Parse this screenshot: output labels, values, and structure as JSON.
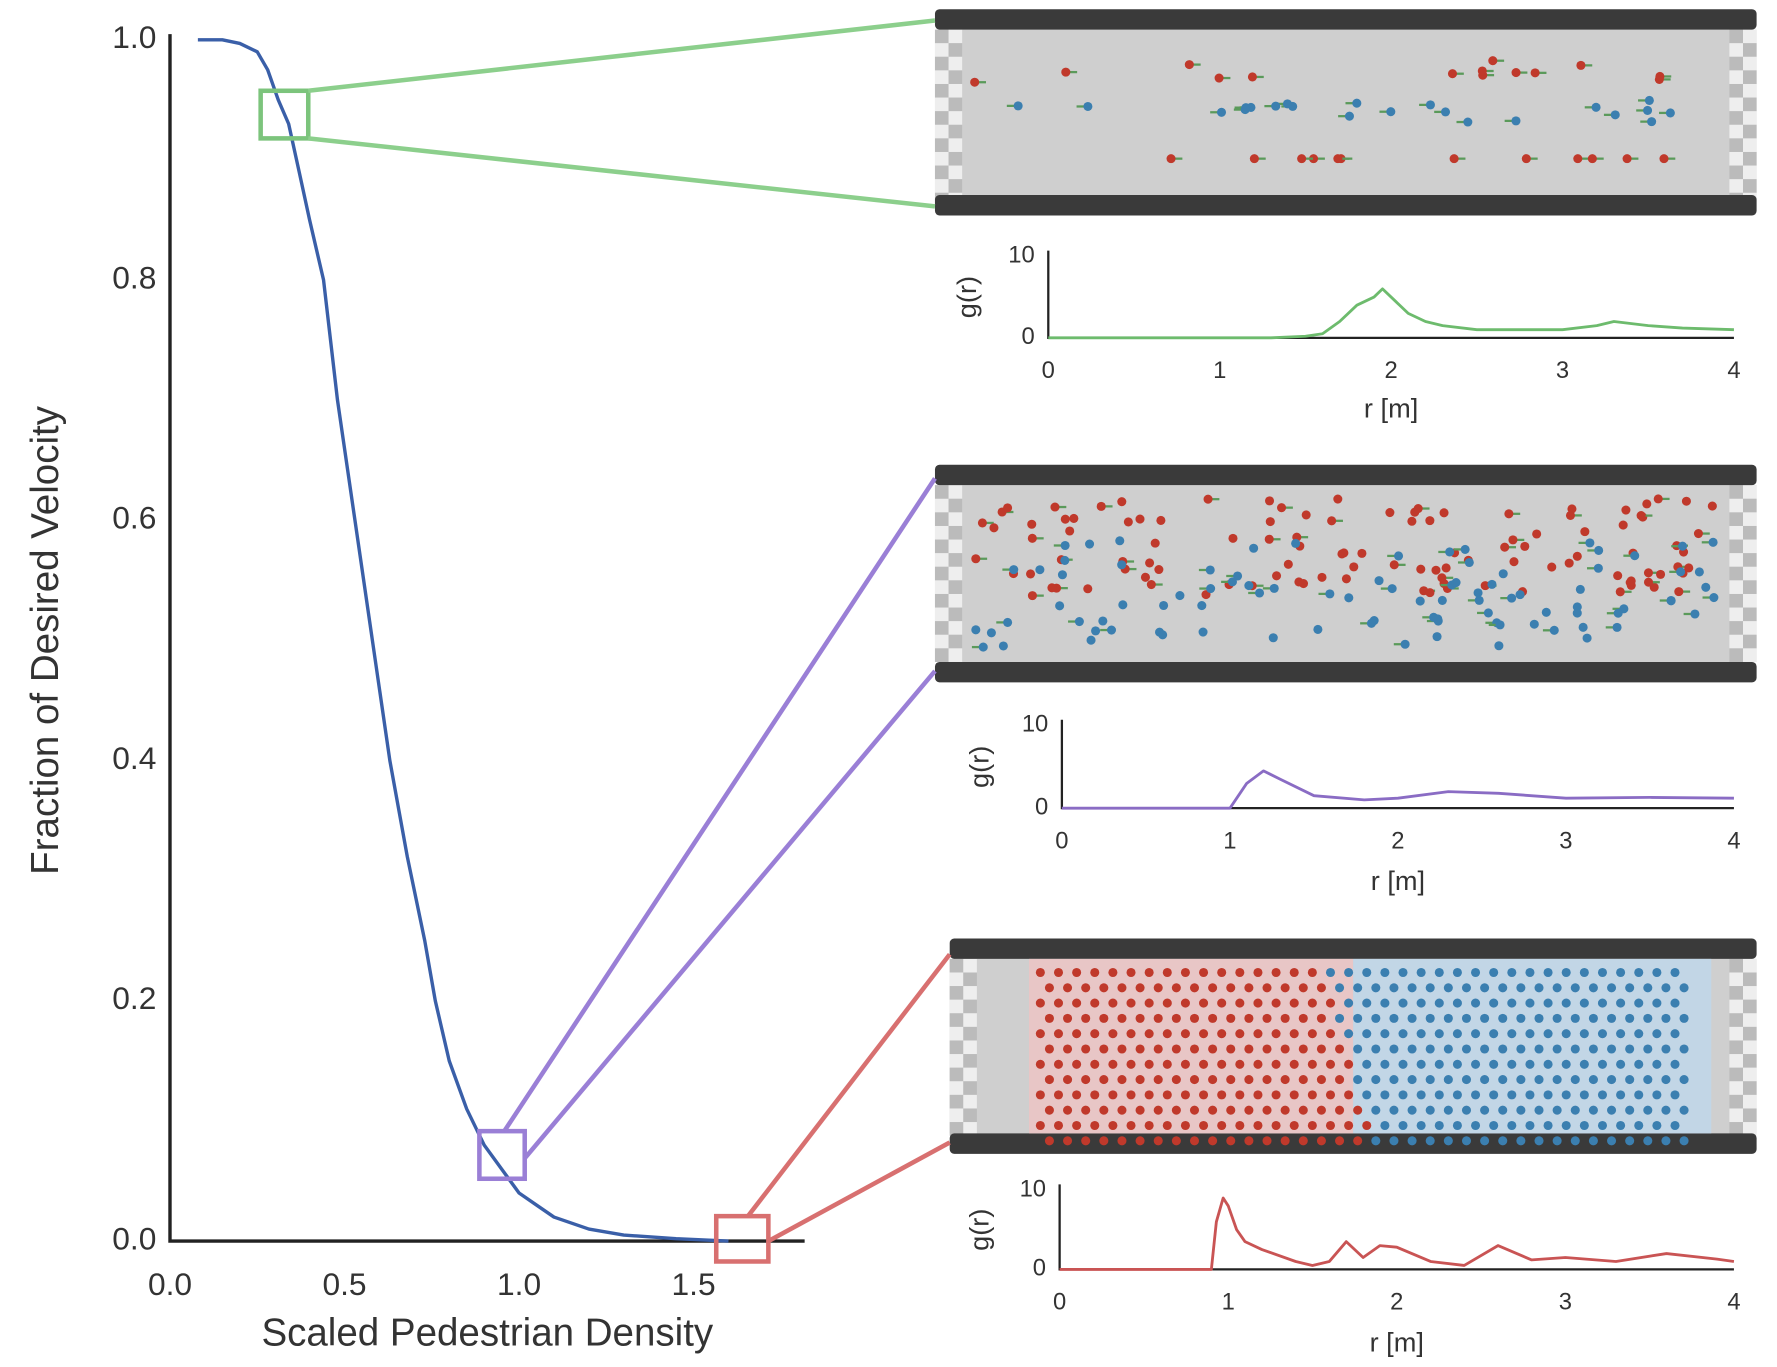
{
  "chart_data": [
    {
      "type": "line",
      "x_label": "Scaled Pedestrian Density",
      "y_label": "Fraction of Desired Velocity",
      "x": [
        0.08,
        0.15,
        0.2,
        0.25,
        0.28,
        0.31,
        0.34,
        0.37,
        0.4,
        0.44,
        0.48,
        0.53,
        0.58,
        0.63,
        0.68,
        0.73,
        0.76,
        0.8,
        0.85,
        0.9,
        0.95,
        1.0,
        1.05,
        1.1,
        1.2,
        1.3,
        1.45,
        1.6
      ],
      "values": [
        1.0,
        1.0,
        0.997,
        0.99,
        0.975,
        0.95,
        0.93,
        0.89,
        0.85,
        0.8,
        0.7,
        0.6,
        0.5,
        0.4,
        0.32,
        0.25,
        0.2,
        0.15,
        0.11,
        0.08,
        0.06,
        0.04,
        0.03,
        0.02,
        0.01,
        0.005,
        0.002,
        0.0
      ],
      "color": "#3a5fa8",
      "xlim": [
        0,
        1.82
      ],
      "ylim": [
        0,
        1.0
      ],
      "xticks": [
        {
          "value": 0,
          "label": "0.0"
        },
        {
          "value": 0.5,
          "label": "0.5"
        },
        {
          "value": 1,
          "label": "1.0"
        },
        {
          "value": 1.5,
          "label": "1.5"
        }
      ],
      "yticks": [
        {
          "value": 0,
          "label": "0.0"
        },
        {
          "value": 0.2,
          "label": "0.2"
        },
        {
          "value": 0.4,
          "label": "0.4"
        },
        {
          "value": 0.6,
          "label": "0.6"
        },
        {
          "value": 0.8,
          "label": "0.8"
        },
        {
          "value": 1,
          "label": "1.0"
        }
      ]
    },
    {
      "type": "line",
      "x_label": "r [m]",
      "y_label": "g(r)",
      "x": [
        0,
        1.3,
        1.5,
        1.6,
        1.7,
        1.8,
        1.9,
        1.95,
        2.0,
        2.1,
        2.2,
        2.3,
        2.5,
        2.8,
        3.0,
        3.2,
        3.3,
        3.5,
        3.7,
        4.0
      ],
      "values": [
        0,
        0,
        0.2,
        0.5,
        2,
        4,
        5,
        6,
        5,
        3,
        2,
        1.5,
        1,
        1,
        1,
        1.5,
        2,
        1.5,
        1.2,
        1
      ],
      "color": "#6dbb6d",
      "xlim": [
        0,
        4
      ],
      "ylim": [
        0,
        10
      ],
      "xticks": [
        0,
        1,
        2,
        3,
        4
      ],
      "yticks": [
        0,
        10
      ]
    },
    {
      "type": "line",
      "x_label": "r [m]",
      "y_label": "g(r)",
      "x": [
        0,
        1.0,
        1.1,
        1.2,
        1.3,
        1.5,
        1.8,
        2.0,
        2.3,
        2.6,
        3.0,
        3.5,
        4.0
      ],
      "values": [
        0,
        0,
        3,
        4.5,
        3.5,
        1.5,
        1,
        1.2,
        2,
        1.8,
        1.2,
        1.3,
        1.2
      ],
      "color": "#8a6cc4",
      "xlim": [
        0,
        4
      ],
      "ylim": [
        0,
        10
      ],
      "xticks": [
        0,
        1,
        2,
        3,
        4
      ],
      "yticks": [
        0,
        10
      ]
    },
    {
      "type": "line",
      "x_label": "r [m]",
      "y_label": "g(r)",
      "x": [
        0,
        0.9,
        0.93,
        0.97,
        1.0,
        1.05,
        1.1,
        1.2,
        1.4,
        1.5,
        1.6,
        1.7,
        1.8,
        1.9,
        2.0,
        2.2,
        2.4,
        2.6,
        2.8,
        3.0,
        3.3,
        3.6,
        3.9,
        4.0
      ],
      "values": [
        0,
        0,
        6,
        9,
        8,
        5,
        3.5,
        2.5,
        1,
        0.5,
        1,
        3.5,
        1.5,
        3,
        2.8,
        1,
        0.5,
        3,
        1.2,
        1.5,
        1,
        2,
        1.3,
        1
      ],
      "color": "#c95454",
      "xlim": [
        0,
        4
      ],
      "ylim": [
        0,
        10
      ],
      "xticks": [
        0,
        1,
        2,
        3,
        4
      ],
      "yticks": [
        0,
        10
      ]
    }
  ]
}
